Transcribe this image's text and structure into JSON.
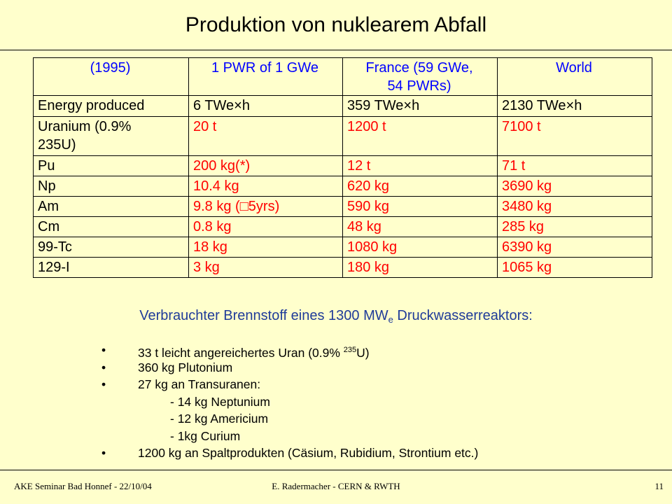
{
  "slide": {
    "title": "Produktion von nuklearem Abfall"
  },
  "table": {
    "headers": [
      "(1995)",
      "1 PWR  of 1 GWe",
      "France (59 GWe,",
      "54 PWRs)",
      "World"
    ],
    "rows": [
      [
        "Energy produced",
        "6 TWe×h",
        "359 TWe×h",
        "2130 TWe×h"
      ],
      [
        "Uranium (0.9%",
        "235U)",
        "20 t",
        "1200 t",
        "7100 t"
      ],
      [
        "Pu",
        "200 kg(*)",
        "12 t",
        "71 t"
      ],
      [
        "Np",
        "10.4 kg",
        "620 kg",
        "3690 kg"
      ],
      [
        "Am",
        "9.8 kg (□5yrs)",
        "590 kg",
        "3480 kg"
      ],
      [
        "Cm",
        "0.8 kg",
        "48 kg",
        "285 kg"
      ],
      [
        "99-Tc",
        "18 kg",
        "1080 kg",
        "6390 kg"
      ],
      [
        "129-I",
        "3 kg",
        "180 kg",
        "1065 kg"
      ]
    ]
  },
  "subheading": {
    "main": "Verbrauchter Brennstoff eines 1300 MW",
    "subscript": "e",
    "rest": " Druckwasserreaktors:"
  },
  "bullets": {
    "marker": "•",
    "items": [
      {
        "text": "33 t leicht angereichertes Uran (0.9% ",
        "sup": "235",
        "tail": "U)"
      },
      {
        "text": "360 kg Plutonium"
      },
      {
        "text": "27 kg an Transuranen:"
      },
      {
        "text": "1200 kg an Spaltprodukten (Cäsium, Rubidium, Strontium etc.)"
      }
    ],
    "subitems": [
      "- 14 kg Neptunium",
      "- 12 kg Americium",
      "- 1kg Curium"
    ]
  },
  "footer": {
    "left": "AKE Seminar Bad Honnef - 22/10/04",
    "center": "E. Radermacher - CERN & RWTH",
    "page": "11"
  },
  "colors": {
    "background": "#FFFFCC",
    "header_text": "#0000FF",
    "value_text": "#FF0000",
    "subheading": "#1F3B99"
  }
}
